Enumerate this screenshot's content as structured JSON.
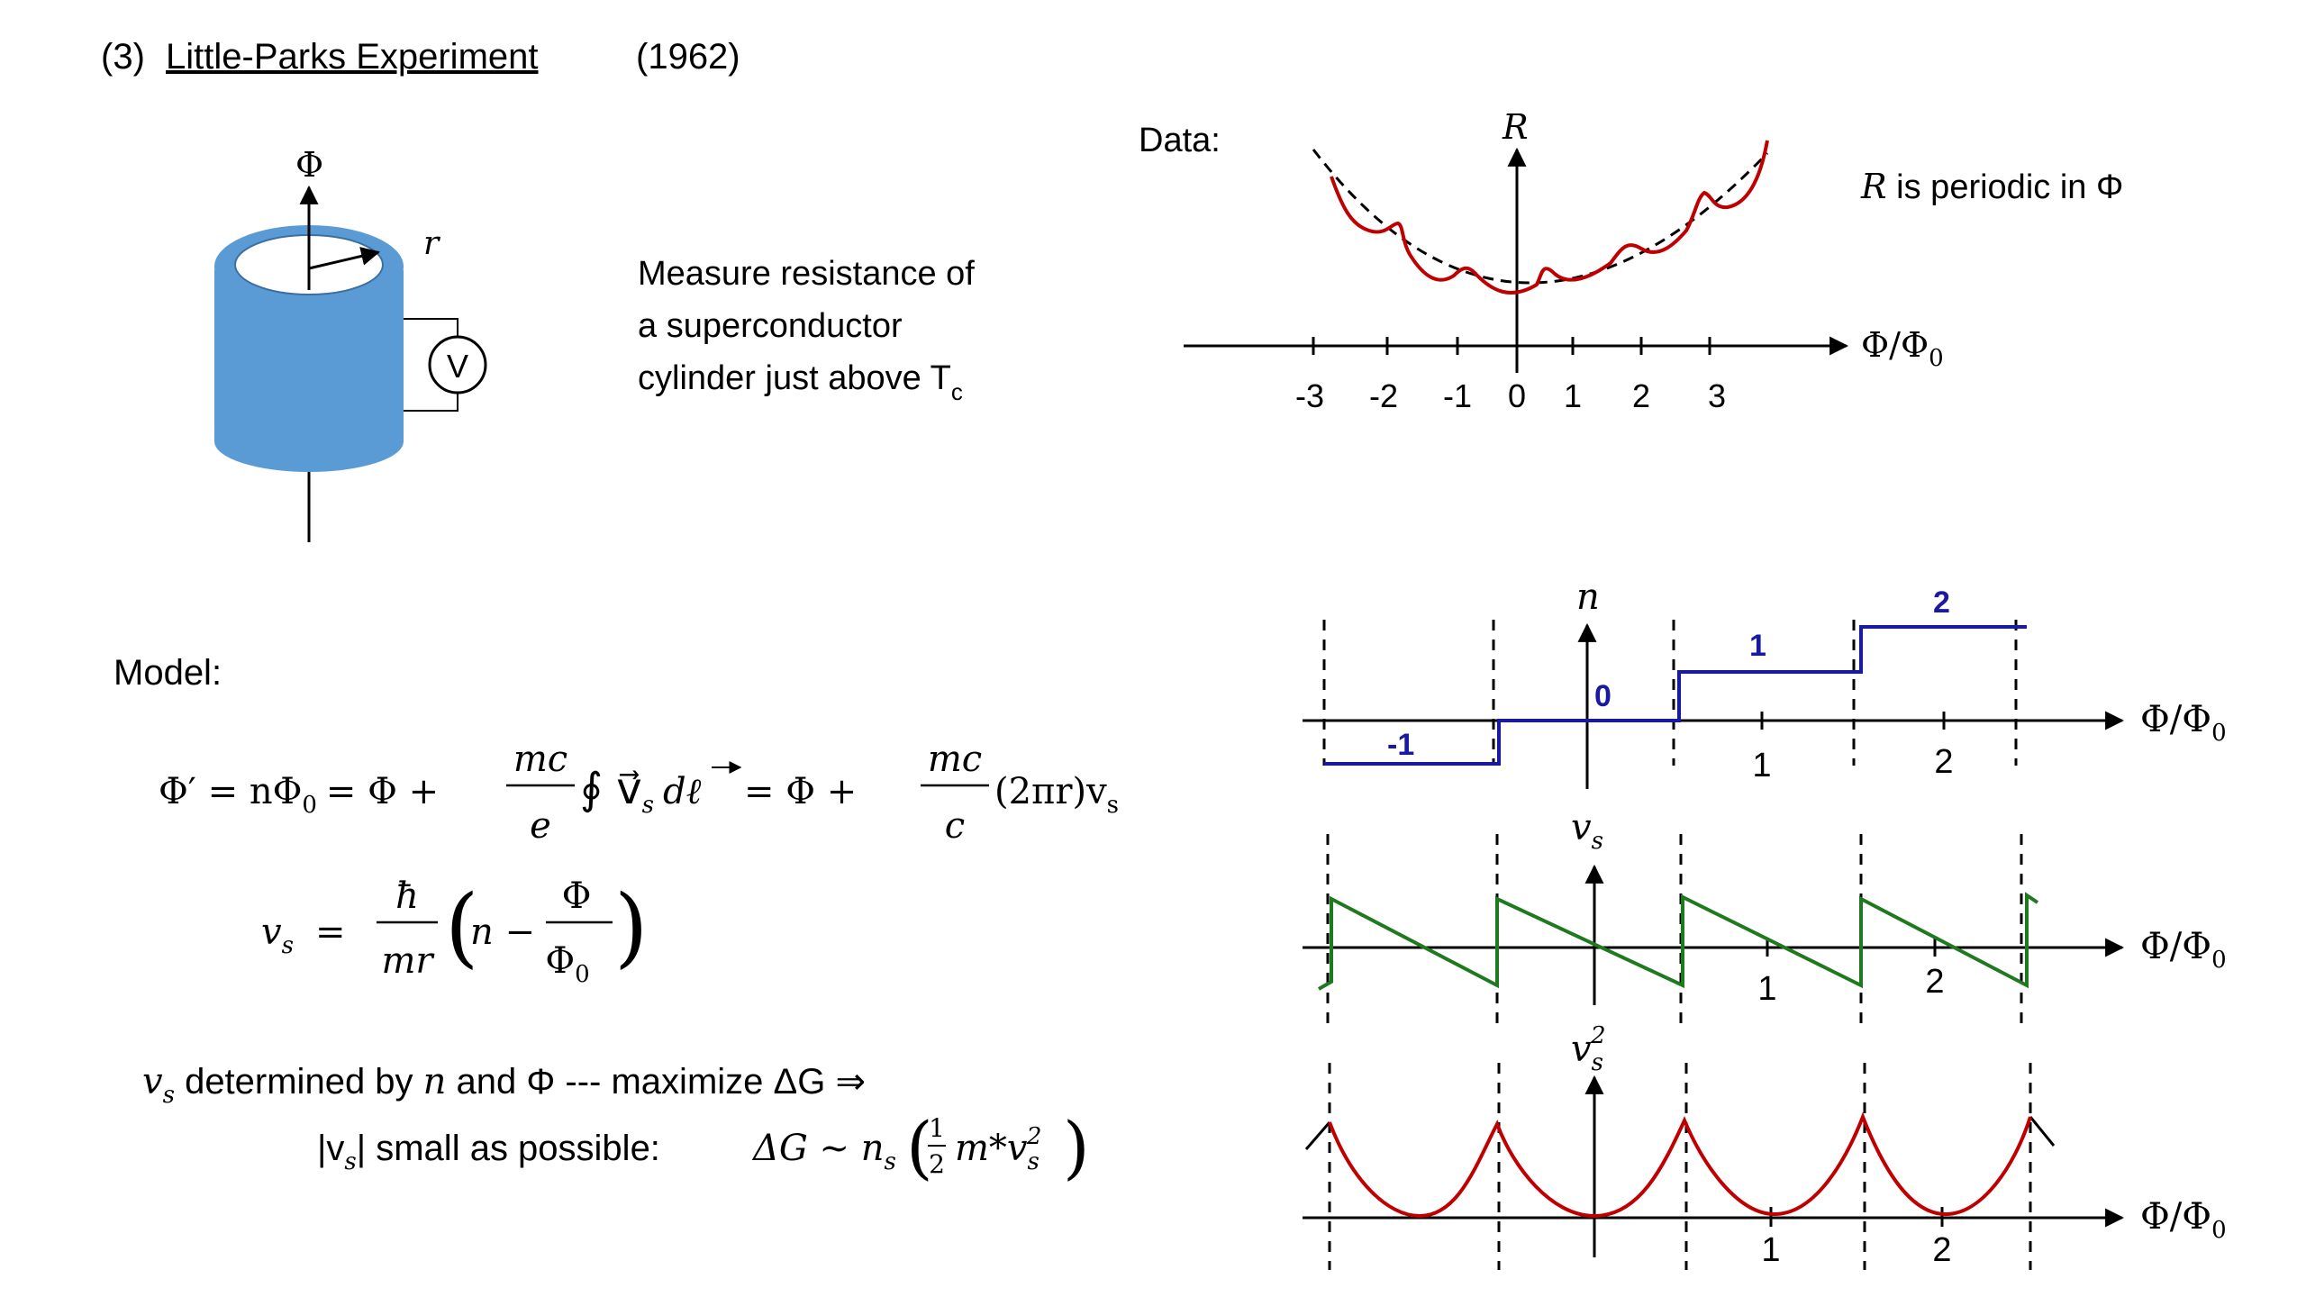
{
  "title": {
    "number": "(3)",
    "name": "Little-Parks Experiment",
    "year": "(1962)"
  },
  "setup": {
    "phi_label": "Φ",
    "r_label": "r",
    "voltmeter_label": "V",
    "description_lines": [
      "Measure resistance of",
      "a superconductor",
      "cylinder just above T"
    ],
    "tc_subscript": "c"
  },
  "data_plot": {
    "data_label": "Data:",
    "y_label": "R",
    "x_label": "Φ/Φ",
    "x_label_sub": "0",
    "ticks": [
      "-3",
      "-2",
      "-1",
      "0",
      "1",
      "2",
      "3"
    ],
    "periodic_r": "R",
    "periodic_text": " is periodic in Φ",
    "colors": {
      "measured": "#c00000",
      "envelope": "#000000"
    }
  },
  "model": {
    "label": "Model:",
    "eq1_lhs": "Φ′ = nΦ",
    "eq1_sub0": "0",
    "eq1_mid": "= Φ  +",
    "frac_mc": "mc",
    "frac_e": "e",
    "frac_c": "c",
    "integral_body": "∮ v⃗",
    "integral_s": "s",
    "integral_dl": "dℓ",
    "eq1_rhs_mid": "=   Φ  +",
    "eq1_rhs_tail": "(2πr)v",
    "eq1_rhs_sub": "s",
    "eq2_lhs": "v",
    "eq2_lhs_sub": "s",
    "eq2_eq": "=",
    "frac_hbar": "ħ",
    "frac_mr": "mr",
    "paren_n": "n −",
    "frac_phi": "Φ",
    "frac_phi0": "Φ",
    "frac_phi0_sub": "0",
    "line1_v": "v",
    "line1_sub": "s",
    "line1_text": " determined by ",
    "line1_n": "n",
    "line1_text2": " and Φ --- maximize ΔG   ⇒",
    "line2_text": "|v",
    "line2_sub": "s",
    "line2_text2": "| small as possible:",
    "line2_formula": "ΔG ~ n",
    "line2_formula_sub": "s",
    "line2_half_num": "1",
    "line2_half_den": "2",
    "line2_formula_tail": "m*v",
    "line2_formula_sub2": "s",
    "line2_formula_sup": "2"
  },
  "model_plots": {
    "n_plot": {
      "y_label": "n",
      "x_label": "Φ/Φ",
      "x_label_sub": "0",
      "step_labels": [
        "-1",
        "0",
        "1",
        "2"
      ],
      "ticks": [
        "1",
        "2"
      ],
      "color": "#1a1aa0"
    },
    "vs_plot": {
      "y_label": "v",
      "y_label_sub": "s",
      "x_label": "Φ/Φ",
      "x_label_sub": "0",
      "ticks": [
        "1",
        "2"
      ],
      "color": "#1f7a1f"
    },
    "vs2_plot": {
      "y_label": "v",
      "y_label_sub": "s",
      "y_label_sup": "2",
      "x_label": "Φ/Φ",
      "x_label_sub": "0",
      "ticks": [
        "1",
        "2"
      ],
      "color": "#c00000"
    }
  }
}
